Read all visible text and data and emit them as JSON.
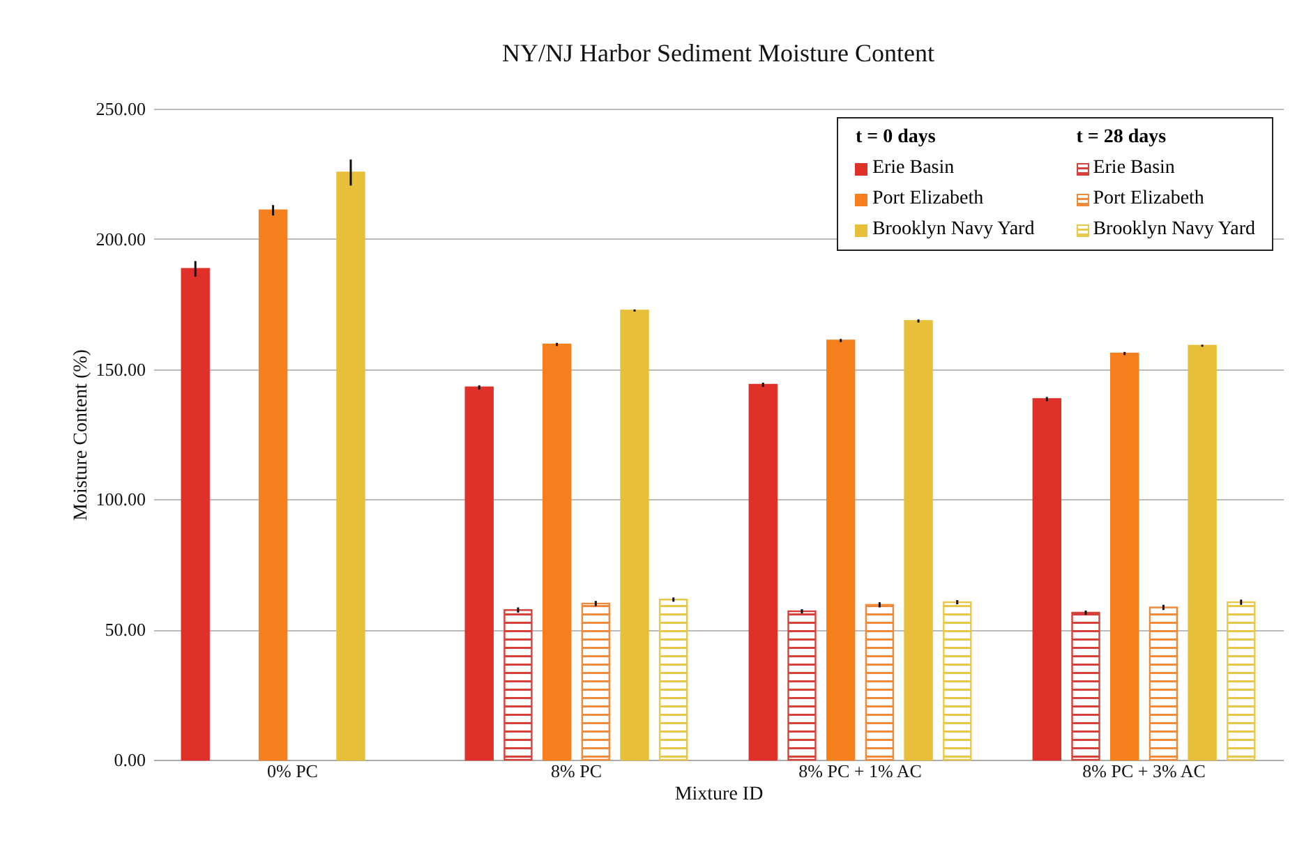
{
  "chart_data": {
    "type": "bar",
    "title": "NY/NJ Harbor Sediment Moisture Content",
    "xlabel": "Mixture ID",
    "ylabel": "Moisture Content (%)",
    "categories": [
      "0% PC",
      "8% PC",
      "8% PC + 1% AC",
      "8% PC + 3% AC"
    ],
    "series": [
      {
        "name": "Erie Basin",
        "color": "#e0302a",
        "values": [
          188.5,
          143,
          144,
          138.5
        ],
        "errors": [
          3,
          0.8,
          0.8,
          0.8
        ]
      },
      {
        "name": "Erie Basin",
        "color": "#d8403a",
        "values": [
          null,
          57.5,
          57,
          56.5
        ],
        "errors": [
          null,
          1,
          0.8,
          0.8
        ]
      },
      {
        "name": "Port Elizabeth",
        "color": "#f7801e",
        "values": [
          211,
          159.5,
          161,
          156
        ],
        "errors": [
          2,
          0.6,
          0.6,
          0.6
        ]
      },
      {
        "name": "Port Elizabeth",
        "color": "#f08a3a",
        "values": [
          null,
          60,
          59.5,
          58.5
        ],
        "errors": [
          null,
          1,
          1,
          1
        ]
      },
      {
        "name": "Brooklyn Navy Yard",
        "color": "#e8bf38",
        "values": [
          225.5,
          172.5,
          168.5,
          159
        ],
        "errors": [
          5,
          0.4,
          0.6,
          0.4
        ]
      },
      {
        "name": "Brooklyn Navy Yard",
        "color": "#e8c84a",
        "values": [
          null,
          61.5,
          60.5,
          60.5
        ],
        "errors": [
          null,
          0.8,
          0.8,
          1
        ]
      }
    ],
    "ylim": [
      0,
      250
    ],
    "yticks": [
      {
        "value": 0,
        "label": "0.00"
      },
      {
        "value": 50,
        "label": "50.00"
      },
      {
        "value": 100,
        "label": "100.00"
      },
      {
        "value": 150,
        "label": "150.00"
      },
      {
        "value": 200,
        "label": "200.00"
      },
      {
        "value": 250,
        "label": "250.00"
      }
    ],
    "grid": "y",
    "legend": "top right",
    "annotations": [
      "t = 0 days",
      "t = 28 days"
    ]
  }
}
